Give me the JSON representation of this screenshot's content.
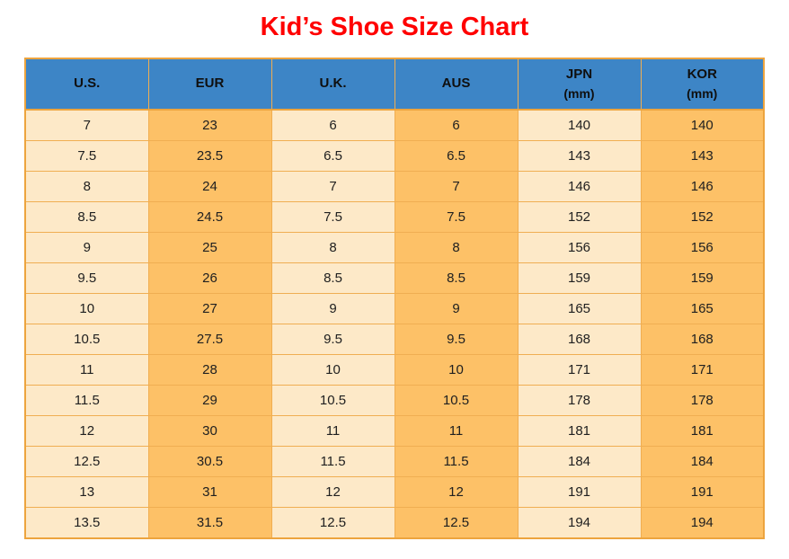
{
  "chart_data": {
    "type": "table",
    "title": "Kid’s Shoe Size Chart",
    "columns": [
      {
        "label": "U.S.",
        "sublabel": ""
      },
      {
        "label": "EUR",
        "sublabel": ""
      },
      {
        "label": "U.K.",
        "sublabel": ""
      },
      {
        "label": "AUS",
        "sublabel": ""
      },
      {
        "label": "JPN",
        "sublabel": "(mm)"
      },
      {
        "label": "KOR",
        "sublabel": "(mm)"
      }
    ],
    "rows": [
      [
        "7",
        "23",
        "6",
        "6",
        "140",
        "140"
      ],
      [
        "7.5",
        "23.5",
        "6.5",
        "6.5",
        "143",
        "143"
      ],
      [
        "8",
        "24",
        "7",
        "7",
        "146",
        "146"
      ],
      [
        "8.5",
        "24.5",
        "7.5",
        "7.5",
        "152",
        "152"
      ],
      [
        "9",
        "25",
        "8",
        "8",
        "156",
        "156"
      ],
      [
        "9.5",
        "26",
        "8.5",
        "8.5",
        "159",
        "159"
      ],
      [
        "10",
        "27",
        "9",
        "9",
        "165",
        "165"
      ],
      [
        "10.5",
        "27.5",
        "9.5",
        "9.5",
        "168",
        "168"
      ],
      [
        "11",
        "28",
        "10",
        "10",
        "171",
        "171"
      ],
      [
        "11.5",
        "29",
        "10.5",
        "10.5",
        "178",
        "178"
      ],
      [
        "12",
        "30",
        "11",
        "11",
        "181",
        "181"
      ],
      [
        "12.5",
        "30.5",
        "11.5",
        "11.5",
        "184",
        "184"
      ],
      [
        "13",
        "31",
        "12",
        "12",
        "191",
        "191"
      ],
      [
        "13.5",
        "31.5",
        "12.5",
        "12.5",
        "194",
        "194"
      ]
    ]
  },
  "colors": {
    "title_color": "#ff0000",
    "header_bg": "#3d85c6",
    "col_light": "#fde9c8",
    "col_orange": "#fdc167",
    "border_outer": "#eda43e",
    "border_inner": "#f0ae52"
  }
}
